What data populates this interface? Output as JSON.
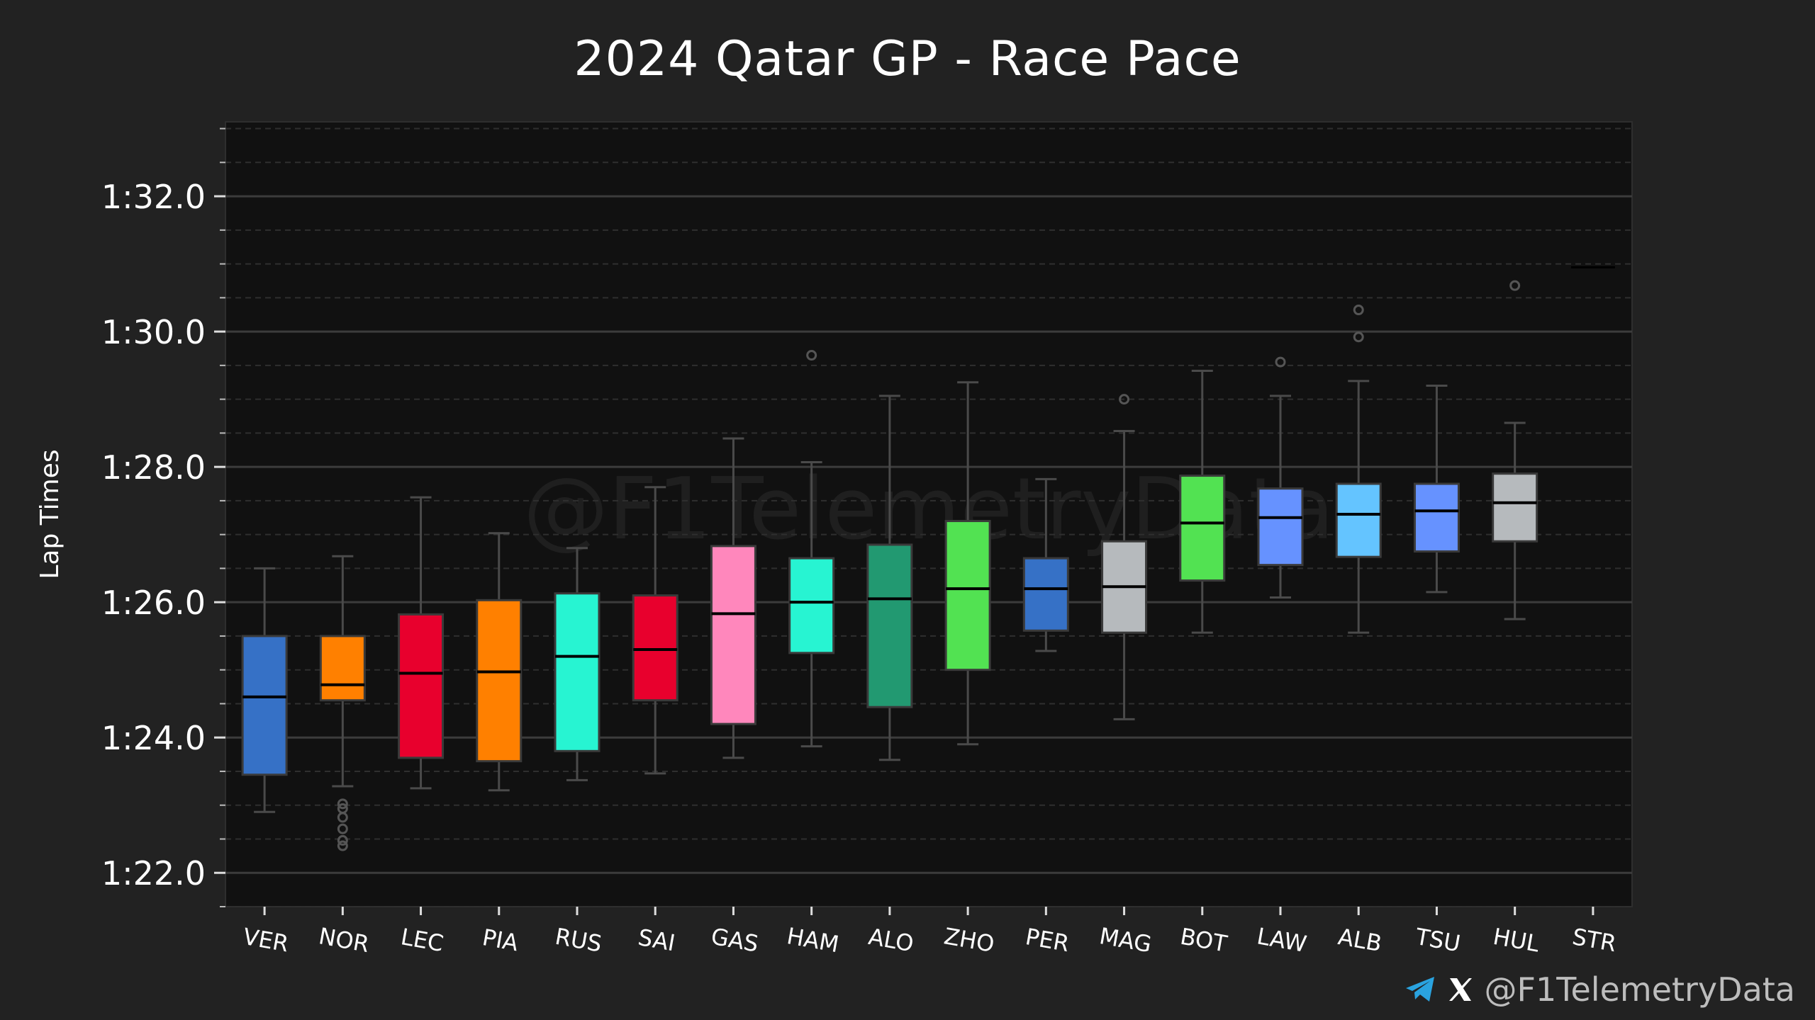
{
  "title": "2024 Qatar GP - Race Pace",
  "watermark": "@F1TelemetryData",
  "footer": {
    "handle": "@F1TelemetryData",
    "icons": [
      "telegram-icon",
      "x-icon"
    ]
  },
  "colors": {
    "background": "#222222",
    "plot_background": "#111111",
    "gridline": "#3c3c3c",
    "whisker": "#4a4a4a",
    "telegram": "#2aa3df"
  },
  "chart_data": {
    "type": "boxplot",
    "title": "2024 Qatar GP - Race Pace",
    "xlabel": "",
    "ylabel": "Lap Times",
    "y_unit": "seconds",
    "ylim": [
      81.5,
      93.1
    ],
    "y_ticks": [
      82,
      84,
      86,
      88,
      90,
      92
    ],
    "y_tick_labels": [
      "1:22.0",
      "1:24.0",
      "1:26.0",
      "1:28.0",
      "1:30.0",
      "1:32.0"
    ],
    "grid": true,
    "categories": [
      "VER",
      "NOR",
      "LEC",
      "PIA",
      "RUS",
      "SAI",
      "GAS",
      "HAM",
      "ALO",
      "ZHO",
      "PER",
      "MAG",
      "BOT",
      "LAW",
      "ALB",
      "TSU",
      "HUL",
      "STR"
    ],
    "boxes": [
      {
        "driver": "VER",
        "color": "#3671c6",
        "min": 82.9,
        "q1": 83.45,
        "median": 84.6,
        "q3": 85.5,
        "max": 86.5,
        "outliers": []
      },
      {
        "driver": "NOR",
        "color": "#ff8000",
        "min": 83.28,
        "q1": 84.55,
        "median": 84.78,
        "q3": 85.5,
        "max": 86.68,
        "outliers": [
          82.4,
          82.48,
          82.65,
          82.82,
          82.95,
          83.02
        ]
      },
      {
        "driver": "LEC",
        "color": "#e8002d",
        "min": 83.25,
        "q1": 83.7,
        "median": 84.95,
        "q3": 85.82,
        "max": 87.55,
        "outliers": []
      },
      {
        "driver": "PIA",
        "color": "#ff8000",
        "min": 83.22,
        "q1": 83.65,
        "median": 84.97,
        "q3": 86.03,
        "max": 87.02,
        "outliers": []
      },
      {
        "driver": "RUS",
        "color": "#27f4d2",
        "min": 83.37,
        "q1": 83.8,
        "median": 85.2,
        "q3": 86.13,
        "max": 86.8,
        "outliers": []
      },
      {
        "driver": "SAI",
        "color": "#e8002d",
        "min": 83.47,
        "q1": 84.55,
        "median": 85.3,
        "q3": 86.1,
        "max": 87.7,
        "outliers": []
      },
      {
        "driver": "GAS",
        "color": "#ff87bc",
        "min": 83.7,
        "q1": 84.2,
        "median": 85.83,
        "q3": 86.83,
        "max": 88.42,
        "outliers": []
      },
      {
        "driver": "HAM",
        "color": "#27f4d2",
        "min": 83.87,
        "q1": 85.25,
        "median": 86.0,
        "q3": 86.65,
        "max": 88.07,
        "outliers": [
          89.65
        ]
      },
      {
        "driver": "ALO",
        "color": "#229971",
        "min": 83.67,
        "q1": 84.45,
        "median": 86.05,
        "q3": 86.85,
        "max": 89.05,
        "outliers": []
      },
      {
        "driver": "ZHO",
        "color": "#52e252",
        "min": 83.9,
        "q1": 85.0,
        "median": 86.2,
        "q3": 87.2,
        "max": 89.25,
        "outliers": []
      },
      {
        "driver": "PER",
        "color": "#3671c6",
        "min": 85.28,
        "q1": 85.58,
        "median": 86.2,
        "q3": 86.65,
        "max": 87.82,
        "outliers": []
      },
      {
        "driver": "MAG",
        "color": "#b6babd",
        "min": 84.27,
        "q1": 85.55,
        "median": 86.23,
        "q3": 86.9,
        "max": 88.53,
        "outliers": [
          89.0
        ]
      },
      {
        "driver": "BOT",
        "color": "#52e252",
        "min": 85.55,
        "q1": 86.32,
        "median": 87.17,
        "q3": 87.87,
        "max": 89.42,
        "outliers": []
      },
      {
        "driver": "LAW",
        "color": "#6692ff",
        "min": 86.07,
        "q1": 86.55,
        "median": 87.25,
        "q3": 87.68,
        "max": 89.05,
        "outliers": [
          89.55
        ]
      },
      {
        "driver": "ALB",
        "color": "#64c4ff",
        "min": 85.55,
        "q1": 86.67,
        "median": 87.3,
        "q3": 87.75,
        "max": 89.27,
        "outliers": [
          89.92,
          90.32
        ]
      },
      {
        "driver": "TSU",
        "color": "#6692ff",
        "min": 86.15,
        "q1": 86.75,
        "median": 87.35,
        "q3": 87.75,
        "max": 89.2,
        "outliers": []
      },
      {
        "driver": "HUL",
        "color": "#b6babd",
        "min": 85.75,
        "q1": 86.9,
        "median": 87.47,
        "q3": 87.9,
        "max": 88.65,
        "outliers": [
          90.68
        ]
      },
      {
        "driver": "STR",
        "color": "#229971",
        "min": 90.95,
        "q1": 90.95,
        "median": 90.95,
        "q3": 90.95,
        "max": 90.95,
        "outliers": []
      }
    ]
  }
}
